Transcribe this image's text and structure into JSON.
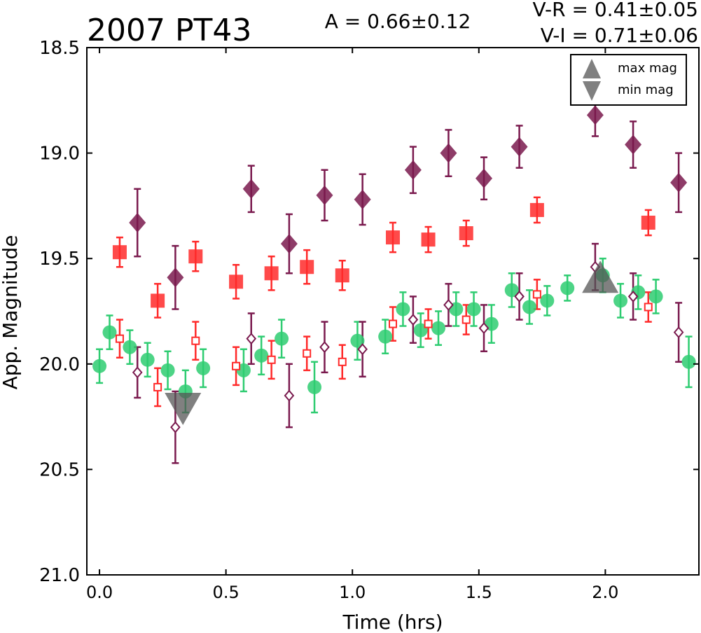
{
  "chart_data": {
    "type": "scatter",
    "title": "2007 PT43",
    "amplitude_label": "A  = 0.66±0.12",
    "color_labels": [
      "V-R = 0.41±0.05",
      "V-I  = 0.71±0.06"
    ],
    "xlabel": "Time (hrs)",
    "ylabel": "App. Magnitude",
    "xlim": [
      -0.05,
      2.37
    ],
    "ylim": [
      18.5,
      21.0
    ],
    "y_inverted": true,
    "grid": false,
    "legend_position": "top-right",
    "x_ticks": [
      "0.0",
      "0.5",
      "1.0",
      "1.5",
      "2.0"
    ],
    "x_tick_values": [
      0.0,
      0.5,
      1.0,
      1.5,
      2.0
    ],
    "y_ticks": [
      "18.5",
      "19.0",
      "19.5",
      "20.0",
      "20.5",
      "21.0"
    ],
    "y_tick_values": [
      18.5,
      19.0,
      19.5,
      20.0,
      20.5,
      21.0
    ],
    "series": [
      {
        "marker": "square-filled",
        "color": "#ff2a2a",
        "points": [
          {
            "x": 0.08,
            "y": 19.47,
            "err": 0.07
          },
          {
            "x": 0.23,
            "y": 19.7,
            "err": 0.08
          },
          {
            "x": 0.38,
            "y": 19.49,
            "err": 0.07
          },
          {
            "x": 0.54,
            "y": 19.61,
            "err": 0.08
          },
          {
            "x": 0.68,
            "y": 19.57,
            "err": 0.08
          },
          {
            "x": 0.82,
            "y": 19.54,
            "err": 0.08
          },
          {
            "x": 0.96,
            "y": 19.58,
            "err": 0.07
          },
          {
            "x": 1.16,
            "y": 19.4,
            "err": 0.07
          },
          {
            "x": 1.3,
            "y": 19.41,
            "err": 0.06
          },
          {
            "x": 1.45,
            "y": 19.38,
            "err": 0.06
          },
          {
            "x": 1.73,
            "y": 19.27,
            "err": 0.06
          },
          {
            "x": 2.17,
            "y": 19.33,
            "err": 0.06
          }
        ]
      },
      {
        "marker": "diamond-filled",
        "color": "#7a1a4e",
        "points": [
          {
            "x": 0.15,
            "y": 19.33,
            "err": 0.16
          },
          {
            "x": 0.3,
            "y": 19.59,
            "err": 0.15
          },
          {
            "x": 0.6,
            "y": 19.17,
            "err": 0.11
          },
          {
            "x": 0.75,
            "y": 19.43,
            "err": 0.14
          },
          {
            "x": 0.89,
            "y": 19.2,
            "err": 0.12
          },
          {
            "x": 1.04,
            "y": 19.22,
            "err": 0.12
          },
          {
            "x": 1.24,
            "y": 19.08,
            "err": 0.11
          },
          {
            "x": 1.38,
            "y": 19.0,
            "err": 0.11
          },
          {
            "x": 1.52,
            "y": 19.12,
            "err": 0.1
          },
          {
            "x": 1.66,
            "y": 18.97,
            "err": 0.1
          },
          {
            "x": 1.96,
            "y": 18.82,
            "err": 0.1
          },
          {
            "x": 2.11,
            "y": 18.96,
            "err": 0.11
          },
          {
            "x": 2.29,
            "y": 19.14,
            "err": 0.14
          }
        ]
      },
      {
        "marker": "circle-filled",
        "color": "#2ecc71",
        "points": [
          {
            "x": 0.0,
            "y": 20.01,
            "err": 0.08
          },
          {
            "x": 0.04,
            "y": 19.85,
            "err": 0.08
          },
          {
            "x": 0.12,
            "y": 19.92,
            "err": 0.08
          },
          {
            "x": 0.19,
            "y": 19.98,
            "err": 0.08
          },
          {
            "x": 0.27,
            "y": 20.03,
            "err": 0.09
          },
          {
            "x": 0.34,
            "y": 20.13,
            "err": 0.1
          },
          {
            "x": 0.41,
            "y": 20.02,
            "err": 0.09
          },
          {
            "x": 0.57,
            "y": 20.03,
            "err": 0.1
          },
          {
            "x": 0.64,
            "y": 19.96,
            "err": 0.09
          },
          {
            "x": 0.72,
            "y": 19.88,
            "err": 0.09
          },
          {
            "x": 0.85,
            "y": 20.11,
            "err": 0.12
          },
          {
            "x": 1.02,
            "y": 19.89,
            "err": 0.09
          },
          {
            "x": 1.13,
            "y": 19.87,
            "err": 0.08
          },
          {
            "x": 1.2,
            "y": 19.74,
            "err": 0.08
          },
          {
            "x": 1.27,
            "y": 19.84,
            "err": 0.08
          },
          {
            "x": 1.34,
            "y": 19.83,
            "err": 0.08
          },
          {
            "x": 1.41,
            "y": 19.74,
            "err": 0.08
          },
          {
            "x": 1.48,
            "y": 19.74,
            "err": 0.08
          },
          {
            "x": 1.55,
            "y": 19.81,
            "err": 0.09
          },
          {
            "x": 1.63,
            "y": 19.65,
            "err": 0.08
          },
          {
            "x": 1.7,
            "y": 19.73,
            "err": 0.08
          },
          {
            "x": 1.77,
            "y": 19.7,
            "err": 0.07
          },
          {
            "x": 1.85,
            "y": 19.64,
            "err": 0.06
          },
          {
            "x": 1.99,
            "y": 19.58,
            "err": 0.08
          },
          {
            "x": 2.06,
            "y": 19.7,
            "err": 0.08
          },
          {
            "x": 2.13,
            "y": 19.66,
            "err": 0.08
          },
          {
            "x": 2.2,
            "y": 19.68,
            "err": 0.08
          },
          {
            "x": 2.33,
            "y": 19.99,
            "err": 0.12
          }
        ]
      },
      {
        "marker": "square-open",
        "color": "#ff2a2a",
        "points": [
          {
            "x": 0.08,
            "y": 19.88,
            "err": 0.09
          },
          {
            "x": 0.23,
            "y": 20.11,
            "err": 0.09
          },
          {
            "x": 0.38,
            "y": 19.89,
            "err": 0.09
          },
          {
            "x": 0.54,
            "y": 20.01,
            "err": 0.09
          },
          {
            "x": 0.68,
            "y": 19.98,
            "err": 0.09
          },
          {
            "x": 0.82,
            "y": 19.95,
            "err": 0.08
          },
          {
            "x": 0.96,
            "y": 19.99,
            "err": 0.08
          },
          {
            "x": 1.16,
            "y": 19.81,
            "err": 0.08
          },
          {
            "x": 1.3,
            "y": 19.81,
            "err": 0.07
          },
          {
            "x": 1.45,
            "y": 19.79,
            "err": 0.07
          },
          {
            "x": 1.73,
            "y": 19.67,
            "err": 0.07
          },
          {
            "x": 2.17,
            "y": 19.73,
            "err": 0.07
          }
        ]
      },
      {
        "marker": "diamond-open",
        "color": "#7a1a4e",
        "points": [
          {
            "x": 0.15,
            "y": 20.04,
            "err": 0.12
          },
          {
            "x": 0.3,
            "y": 20.3,
            "err": 0.17
          },
          {
            "x": 0.6,
            "y": 19.88,
            "err": 0.12
          },
          {
            "x": 0.75,
            "y": 20.15,
            "err": 0.15
          },
          {
            "x": 0.89,
            "y": 19.92,
            "err": 0.12
          },
          {
            "x": 1.04,
            "y": 19.93,
            "err": 0.13
          },
          {
            "x": 1.24,
            "y": 19.79,
            "err": 0.11
          },
          {
            "x": 1.38,
            "y": 19.72,
            "err": 0.1
          },
          {
            "x": 1.52,
            "y": 19.83,
            "err": 0.11
          },
          {
            "x": 1.66,
            "y": 19.68,
            "err": 0.11
          },
          {
            "x": 1.96,
            "y": 19.54,
            "err": 0.11
          },
          {
            "x": 2.11,
            "y": 19.68,
            "err": 0.11
          },
          {
            "x": 2.29,
            "y": 19.85,
            "err": 0.14
          }
        ]
      }
    ],
    "extrema": [
      {
        "type": "min",
        "x": 0.33,
        "y": 20.21
      },
      {
        "type": "max",
        "x": 1.98,
        "y": 19.59
      }
    ],
    "legend": [
      {
        "label": "max mag",
        "marker": "triangle-up",
        "color": "#808080"
      },
      {
        "label": "min mag",
        "marker": "triangle-down",
        "color": "#808080"
      }
    ]
  }
}
